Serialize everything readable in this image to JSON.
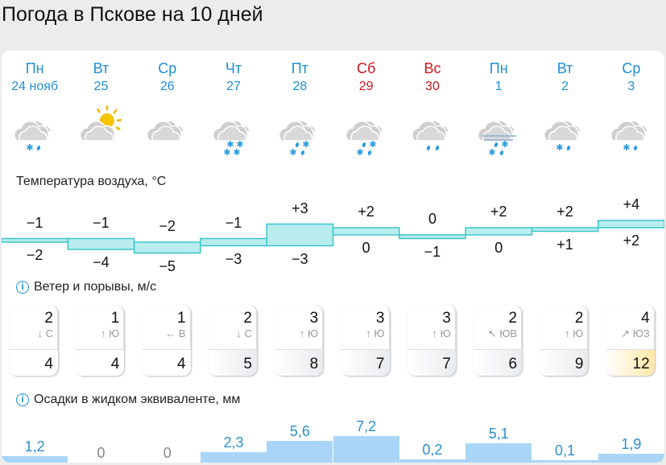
{
  "title": "Погода в Пскове на 10 дней",
  "days": [
    {
      "dow": "Пн",
      "date": "24 нояб",
      "weekend": false,
      "icon": "cloudy-snow-rain",
      "tmax": -1,
      "tmax_label": "−1",
      "tmin": -2,
      "tmin_label": "−2",
      "wind": "2",
      "dir_arrow": "↓",
      "dir": "С",
      "gust": "4",
      "precip": 1.2,
      "precip_label": "1,2"
    },
    {
      "dow": "Вт",
      "date": "25",
      "weekend": false,
      "icon": "partly-cloudy-sun",
      "tmax": -1,
      "tmax_label": "−1",
      "tmin": -4,
      "tmin_label": "−4",
      "wind": "1",
      "dir_arrow": "↑",
      "dir": "Ю",
      "gust": "4",
      "precip": 0,
      "precip_label": "0"
    },
    {
      "dow": "Ср",
      "date": "26",
      "weekend": false,
      "icon": "cloudy",
      "tmax": -2,
      "tmax_label": "−2",
      "tmin": -5,
      "tmin_label": "−5",
      "wind": "1",
      "dir_arrow": "←",
      "dir": "В",
      "gust": "4",
      "precip": 0,
      "precip_label": "0"
    },
    {
      "dow": "Чт",
      "date": "27",
      "weekend": false,
      "icon": "cloudy-snow",
      "tmax": -1,
      "tmax_label": "−1",
      "tmin": -3,
      "tmin_label": "−3",
      "wind": "2",
      "dir_arrow": "↓",
      "dir": "С",
      "gust": "5",
      "precip": 2.3,
      "precip_label": "2,3"
    },
    {
      "dow": "Пт",
      "date": "28",
      "weekend": false,
      "icon": "cloudy-snow-rain-heavy",
      "tmax": 3,
      "tmax_label": "+3",
      "tmin": -3,
      "tmin_label": "−3",
      "wind": "3",
      "dir_arrow": "↑",
      "dir": "Ю",
      "gust": "8",
      "precip": 5.6,
      "precip_label": "5,6"
    },
    {
      "dow": "Сб",
      "date": "29",
      "weekend": true,
      "icon": "cloudy-snow-rain-heavy",
      "tmax": 2,
      "tmax_label": "+2",
      "tmin": 0,
      "tmin_label": "0",
      "wind": "3",
      "dir_arrow": "↑",
      "dir": "Ю",
      "gust": "7",
      "precip": 7.2,
      "precip_label": "7,2"
    },
    {
      "dow": "Вс",
      "date": "30",
      "weekend": true,
      "icon": "cloudy-rain",
      "tmax": 0,
      "tmax_label": "0",
      "tmin": -1,
      "tmin_label": "−1",
      "wind": "3",
      "dir_arrow": "↑",
      "dir": "Ю",
      "gust": "7",
      "precip": 0.2,
      "precip_label": "0,2"
    },
    {
      "dow": "Пн",
      "date": "1",
      "weekend": false,
      "icon": "fog-snow-rain",
      "tmax": 2,
      "tmax_label": "+2",
      "tmin": 0,
      "tmin_label": "0",
      "wind": "2",
      "dir_arrow": "↖",
      "dir": "ЮВ",
      "gust": "6",
      "precip": 5.1,
      "precip_label": "5,1"
    },
    {
      "dow": "Вт",
      "date": "2",
      "weekend": false,
      "icon": "cloudy-snow-rain",
      "tmax": 2,
      "tmax_label": "+2",
      "tmin": 1,
      "tmin_label": "+1",
      "wind": "2",
      "dir_arrow": "↑",
      "dir": "Ю",
      "gust": "9",
      "precip": 0.1,
      "precip_label": "0,1"
    },
    {
      "dow": "Ср",
      "date": "3",
      "weekend": false,
      "icon": "cloudy-snow-rain",
      "tmax": 4,
      "tmax_label": "+4",
      "tmin": 2,
      "tmin_label": "+2",
      "wind": "4",
      "dir_arrow": "↗",
      "dir": "ЮЗ",
      "gust": "12",
      "precip": 1.9,
      "precip_label": "1,9"
    }
  ],
  "sections": {
    "temp": "Температура воздуха, °C",
    "wind": "Ветер и порывы, м/с",
    "precip": "Осадки в жидком эквиваленте, мм"
  },
  "colors": {
    "accent": "#1e8fd6",
    "weekend": "#d0171d",
    "temp_band": "#b9ecee",
    "temp_line": "#3cc6c8",
    "precip": "#a9d6f8",
    "precip_text": "#2b8fd0",
    "gust_strong": "#fde7a6"
  }
}
